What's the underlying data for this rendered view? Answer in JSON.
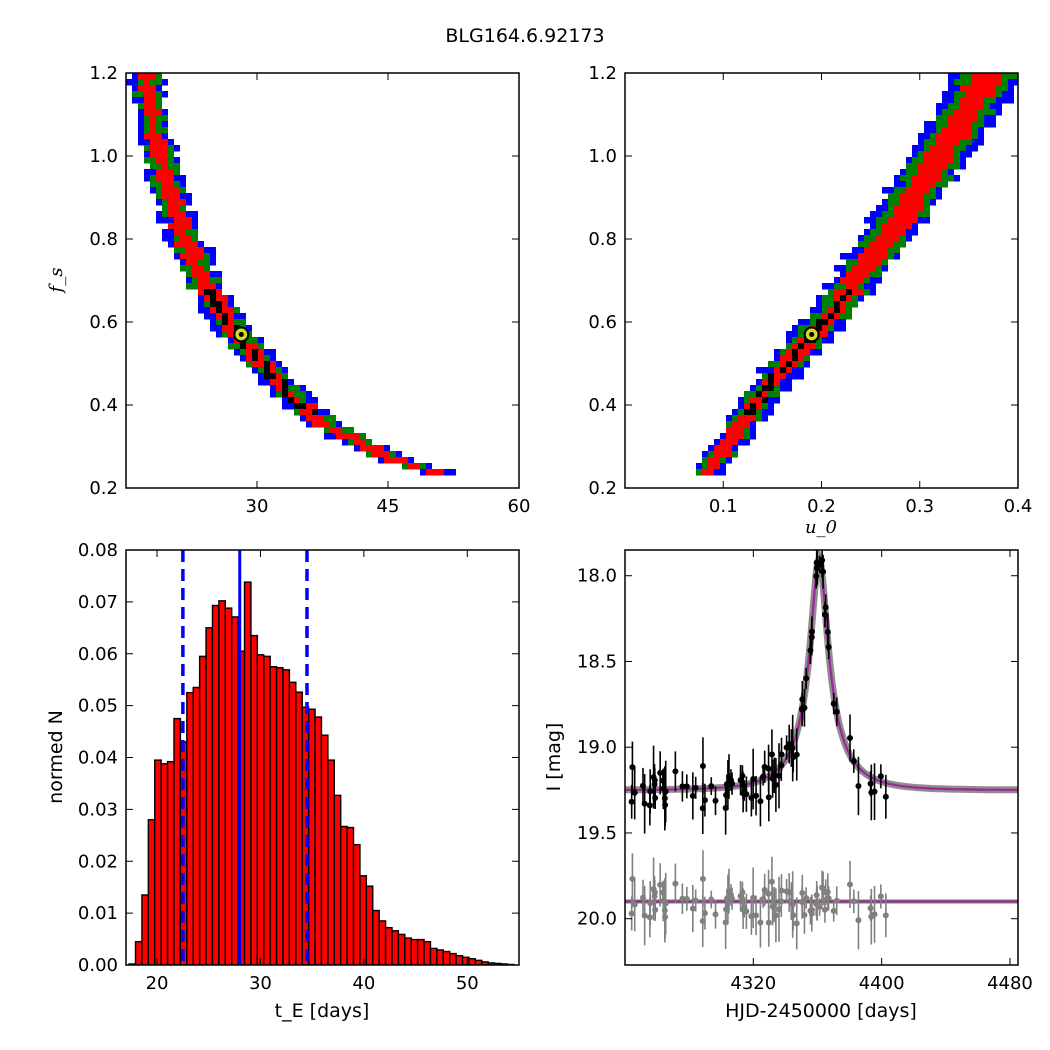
{
  "figure": {
    "title": "BLG164.6.92173"
  },
  "chart_data": [
    {
      "type": "heatmap",
      "panel": "top-left",
      "xlabel": "",
      "ylabel": "f_s",
      "xlim": [
        15,
        60
      ],
      "ylim": [
        0.2,
        1.2
      ],
      "xticks": [
        30,
        45,
        60
      ],
      "yticks": [
        0.2,
        0.4,
        0.6,
        0.8,
        1.0,
        1.2
      ],
      "levels": [
        "blue",
        "green",
        "red",
        "black"
      ],
      "colors": {
        "blue": "#0000ff",
        "green": "#008000",
        "red": "#ff0000",
        "black": "#000000",
        "marker_fill": "#d8d820"
      },
      "best_fit": {
        "x": 28.2,
        "y": 0.57
      },
      "ridge": [
        [
          17.2,
          1.2
        ],
        [
          18.5,
          1.05
        ],
        [
          20.0,
          0.92
        ],
        [
          22.0,
          0.8
        ],
        [
          24.0,
          0.7
        ],
        [
          26.0,
          0.63
        ],
        [
          28.2,
          0.57
        ],
        [
          30.0,
          0.52
        ],
        [
          32.5,
          0.46
        ],
        [
          35.0,
          0.41
        ],
        [
          38.0,
          0.36
        ],
        [
          41.5,
          0.32
        ],
        [
          45.0,
          0.28
        ],
        [
          48.0,
          0.26
        ],
        [
          51.0,
          0.24
        ]
      ]
    },
    {
      "type": "heatmap",
      "panel": "top-right",
      "xlabel": "u_0",
      "ylabel": "",
      "xlim": [
        0.0,
        0.4
      ],
      "ylim": [
        0.2,
        1.2
      ],
      "xticks": [
        0.1,
        0.2,
        0.3,
        0.4
      ],
      "yticks": [
        0.2,
        0.4,
        0.6,
        0.8,
        1.0,
        1.2
      ],
      "levels": [
        "blue",
        "green",
        "red",
        "black"
      ],
      "best_fit": {
        "x": 0.19,
        "y": 0.57
      },
      "ridge": [
        [
          0.08,
          0.23
        ],
        [
          0.11,
          0.33
        ],
        [
          0.14,
          0.43
        ],
        [
          0.17,
          0.52
        ],
        [
          0.19,
          0.57
        ],
        [
          0.22,
          0.66
        ],
        [
          0.25,
          0.76
        ],
        [
          0.28,
          0.86
        ],
        [
          0.31,
          0.97
        ],
        [
          0.34,
          1.08
        ],
        [
          0.37,
          1.2
        ]
      ]
    },
    {
      "type": "bar",
      "panel": "bottom-left",
      "xlabel": "t_E [days]",
      "ylabel": "normed N",
      "xlim": [
        17,
        55
      ],
      "ylim": [
        0.0,
        0.08
      ],
      "xticks": [
        20,
        30,
        40,
        50
      ],
      "yticks": [
        0.0,
        0.01,
        0.02,
        0.03,
        0.04,
        0.05,
        0.06,
        0.07,
        0.08
      ],
      "bins_start": 17.3,
      "bin_width": 0.62,
      "values": [
        0.0002,
        0.0045,
        0.0135,
        0.028,
        0.0395,
        0.0388,
        0.0392,
        0.0475,
        0.043,
        0.0525,
        0.0535,
        0.0595,
        0.065,
        0.0693,
        0.0702,
        0.0688,
        0.0671,
        0.0605,
        0.0738,
        0.0635,
        0.0598,
        0.0595,
        0.0575,
        0.0573,
        0.0569,
        0.0545,
        0.0526,
        0.0497,
        0.0493,
        0.0478,
        0.0443,
        0.0395,
        0.0327,
        0.0267,
        0.0265,
        0.0232,
        0.0172,
        0.0152,
        0.0105,
        0.0085,
        0.0072,
        0.0066,
        0.0059,
        0.0052,
        0.0049,
        0.0049,
        0.0045,
        0.0032,
        0.0029,
        0.0026,
        0.0022,
        0.0018,
        0.0015,
        0.0012,
        0.0009,
        0.0006,
        0.0004,
        0.0003,
        0.0002,
        0.0001
      ],
      "bar_color": "#ff0000",
      "lines": {
        "median": 28.0,
        "lower": 22.5,
        "upper": 34.5,
        "color": "#0000ff"
      }
    },
    {
      "type": "scatter",
      "panel": "bottom-right",
      "xlabel": "HJD-2450000 [days]",
      "ylabel": "I [mag]",
      "xlim": [
        4240,
        4485
      ],
      "ylim": [
        20.27,
        17.85
      ],
      "xticks": [
        4320,
        4400,
        4480
      ],
      "yticks": [
        18.0,
        18.5,
        19.0,
        19.5,
        20.0
      ],
      "model": {
        "t0": 4361,
        "tE": 28.0,
        "u0": 0.19,
        "fs": 0.57,
        "base_mag": 19.25,
        "resid_level": 19.9,
        "color": "#a0259a",
        "band_color": "#7a7a7a"
      },
      "data_color": "#000000",
      "resid_color": "#808080"
    }
  ]
}
